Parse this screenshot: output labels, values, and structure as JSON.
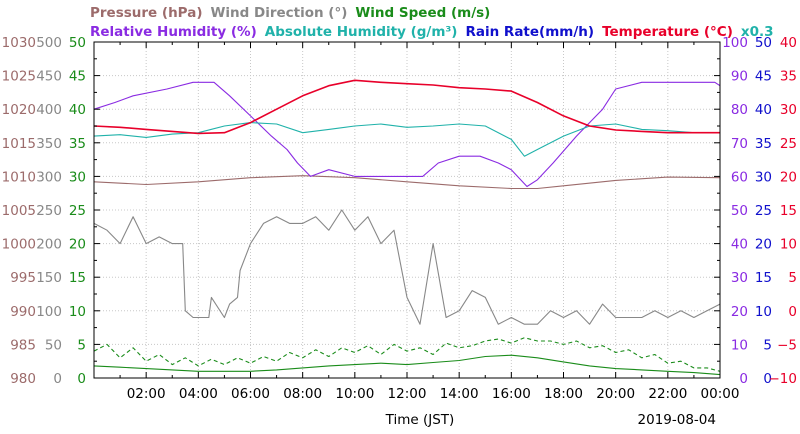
{
  "chart_data": {
    "type": "line",
    "date": "2019-08-04",
    "xlabel": "Time (JST)",
    "x_ticks": [
      "02:00",
      "04:00",
      "06:00",
      "08:00",
      "10:00",
      "12:00",
      "14:00",
      "16:00",
      "18:00",
      "20:00",
      "22:00",
      "00:00"
    ],
    "x_range": [
      "00:00",
      "24:00"
    ],
    "legend_row1": [
      {
        "text": "Pressure (hPa)",
        "color": "#9c6b6b"
      },
      {
        "text": "Wind Direction (°)",
        "color": "#888888"
      },
      {
        "text": "Wind Speed (m/s)",
        "color": "#1a8c1a"
      }
    ],
    "legend_row2": [
      {
        "text": "Relative Humidity (%)",
        "color": "#8a2be2"
      },
      {
        "text": "Absolute Humidity (g/m³)",
        "color": "#20b2aa"
      },
      {
        "text": "Rain Rate(mm/h)",
        "color": "#1010cc"
      },
      {
        "text": "Temperature (°C)",
        "color": "#e8002a"
      },
      {
        "text": "x0.3",
        "color": "#20b2aa"
      }
    ],
    "axes": {
      "pressure": {
        "color": "#9c6b6b",
        "ylim": [
          980,
          1030
        ],
        "ticks": [
          "1030",
          "1025",
          "1020",
          "1015",
          "1010",
          "1005",
          "1000",
          "995",
          "990",
          "985",
          "980"
        ]
      },
      "wind_direction": {
        "color": "#888888",
        "ylim": [
          0,
          500
        ],
        "ticks": [
          "500",
          "450",
          "400",
          "350",
          "300",
          "250",
          "200",
          "150",
          "100",
          "50",
          "0"
        ]
      },
      "wind_speed": {
        "color": "#1a8c1a",
        "ylim": [
          0,
          50
        ],
        "ticks": [
          "50",
          "45",
          "40",
          "35",
          "30",
          "25",
          "20",
          "15",
          "10",
          "5",
          "0"
        ]
      },
      "relative_humidity": {
        "color": "#8a2be2",
        "ylim": [
          0,
          100
        ],
        "ticks": [
          "100",
          "90",
          "80",
          "70",
          "60",
          "50",
          "40",
          "30",
          "20",
          "10",
          "0"
        ]
      },
      "rain_rate": {
        "color": "#1010cc",
        "ylim": [
          0,
          50
        ],
        "ticks": [
          "50",
          "45",
          "40",
          "35",
          "30",
          "25",
          "20",
          "15",
          "10",
          "5",
          "0"
        ]
      },
      "temperature": {
        "color": "#e8002a",
        "ylim": [
          -10,
          40
        ],
        "ticks": [
          "40",
          "35",
          "30",
          "25",
          "20",
          "15",
          "10",
          "5",
          "0",
          "−5",
          "−10"
        ]
      }
    },
    "series": [
      {
        "name": "Temperature",
        "axis": "temperature",
        "color": "#e8002a",
        "x": [
          0,
          1,
          2,
          3,
          4,
          5,
          6,
          7,
          8,
          9,
          10,
          11,
          12,
          13,
          14,
          15,
          16,
          17,
          18,
          19,
          20,
          21,
          22,
          23,
          24
        ],
        "y": [
          27.5,
          27.3,
          27.0,
          26.7,
          26.4,
          26.5,
          28.0,
          30.0,
          32.0,
          33.5,
          34.3,
          34.0,
          33.8,
          33.6,
          33.2,
          33.0,
          32.7,
          31.0,
          29.0,
          27.5,
          26.9,
          26.7,
          26.5,
          26.5,
          26.5
        ]
      },
      {
        "name": "Absolute Humidity ×0.3",
        "axis": "temperature",
        "color": "#20b2aa",
        "x": [
          0,
          1,
          2,
          3,
          4,
          5,
          6,
          7,
          8,
          9,
          10,
          11,
          12,
          13,
          14,
          15,
          16,
          16.5,
          17,
          18,
          19,
          20,
          21,
          22,
          23,
          24
        ],
        "y": [
          26.0,
          26.2,
          25.8,
          26.3,
          26.5,
          27.5,
          28.0,
          27.8,
          26.5,
          27.0,
          27.5,
          27.8,
          27.3,
          27.5,
          27.8,
          27.5,
          25.5,
          23.0,
          24.0,
          26.0,
          27.5,
          27.8,
          27.0,
          26.8,
          26.5,
          26.5
        ]
      },
      {
        "name": "Relative Humidity",
        "axis": "relative_humidity",
        "color": "#8a2be2",
        "x": [
          0,
          0.8,
          1.5,
          2.8,
          3.8,
          4.6,
          5.2,
          6.0,
          6.8,
          7.4,
          7.8,
          8.3,
          9.0,
          10.0,
          11.0,
          12.0,
          12.6,
          13.2,
          14.0,
          14.8,
          15.5,
          16.0,
          16.6,
          17.0,
          17.6,
          18.5,
          19.5,
          20.0,
          21.0,
          22.0,
          23.0,
          23.8,
          24.0
        ],
        "y": [
          80,
          82,
          84,
          86,
          88,
          88,
          84,
          78,
          72,
          68,
          64,
          60,
          62,
          60,
          60,
          60,
          60,
          64,
          66,
          66,
          64,
          62,
          57,
          59,
          64,
          72,
          80,
          86,
          88,
          88,
          88,
          88,
          87
        ]
      },
      {
        "name": "Pressure",
        "axis": "pressure",
        "color": "#9c6b6b",
        "x": [
          0,
          2,
          4,
          6,
          8,
          10,
          12,
          14,
          16,
          17,
          18,
          20,
          22,
          24
        ],
        "y": [
          1009.2,
          1008.8,
          1009.2,
          1009.8,
          1010.1,
          1009.8,
          1009.2,
          1008.6,
          1008.2,
          1008.2,
          1008.6,
          1009.4,
          1009.9,
          1009.8
        ]
      },
      {
        "name": "Wind Direction",
        "axis": "wind_direction",
        "color": "#888888",
        "x": [
          0,
          0.5,
          1.0,
          1.5,
          2.0,
          2.5,
          3.0,
          3.4,
          3.5,
          3.8,
          4.4,
          4.5,
          5.0,
          5.2,
          5.5,
          5.6,
          6.0,
          6.5,
          7.0,
          7.5,
          8.0,
          8.5,
          9.0,
          9.5,
          10.0,
          10.5,
          11.0,
          11.5,
          12.0,
          12.5,
          13.0,
          13.5,
          14.0,
          14.5,
          15.0,
          15.5,
          16.0,
          16.5,
          17.0,
          17.5,
          18.0,
          18.5,
          19.0,
          19.5,
          20.0,
          20.5,
          21.0,
          21.5,
          22.0,
          22.5,
          23.0,
          23.5,
          24.0
        ],
        "y": [
          230,
          220,
          200,
          240,
          200,
          210,
          200,
          200,
          100,
          90,
          90,
          120,
          90,
          110,
          120,
          160,
          200,
          230,
          240,
          230,
          230,
          240,
          220,
          250,
          220,
          240,
          200,
          220,
          120,
          80,
          200,
          90,
          100,
          130,
          120,
          80,
          90,
          80,
          80,
          100,
          90,
          100,
          80,
          110,
          90,
          90,
          90,
          100,
          90,
          100,
          90,
          100,
          110
        ]
      },
      {
        "name": "Wind Speed (avg)",
        "axis": "wind_speed",
        "color": "#1a8c1a",
        "x": [
          0,
          1,
          2,
          3,
          4,
          5,
          6,
          7,
          8,
          9,
          10,
          11,
          12,
          13,
          14,
          15,
          16,
          17,
          18,
          19,
          20,
          21,
          22,
          23,
          24
        ],
        "y": [
          1.8,
          1.6,
          1.4,
          1.2,
          1.0,
          1.0,
          1.0,
          1.2,
          1.5,
          1.8,
          2.0,
          2.2,
          2.0,
          2.3,
          2.6,
          3.2,
          3.4,
          3.0,
          2.4,
          1.8,
          1.4,
          1.2,
          1.0,
          0.8,
          0.5
        ]
      },
      {
        "name": "Wind Speed (gust)",
        "axis": "wind_speed",
        "color": "#1a8c1a",
        "dashed": true,
        "x": [
          0,
          0.5,
          1.0,
          1.5,
          2.0,
          2.5,
          3.0,
          3.5,
          4.0,
          4.5,
          5.0,
          5.5,
          6.0,
          6.5,
          7.0,
          7.5,
          8.0,
          8.5,
          9.0,
          9.5,
          10.0,
          10.5,
          11.0,
          11.5,
          12.0,
          12.5,
          13.0,
          13.5,
          14.0,
          14.5,
          15.0,
          15.5,
          16.0,
          16.5,
          17.0,
          17.5,
          18.0,
          18.5,
          19.0,
          19.5,
          20.0,
          20.5,
          21.0,
          21.5,
          22.0,
          22.5,
          23.0,
          23.5,
          24.0
        ],
        "y": [
          4.0,
          5.0,
          3.0,
          4.5,
          2.5,
          3.5,
          2.0,
          3.0,
          1.8,
          2.8,
          2.0,
          3.0,
          2.2,
          3.2,
          2.5,
          3.8,
          3.0,
          4.2,
          3.2,
          4.5,
          3.8,
          4.8,
          3.5,
          5.0,
          4.0,
          4.5,
          3.5,
          5.2,
          4.5,
          4.8,
          5.5,
          5.8,
          5.2,
          6.0,
          5.5,
          5.5,
          5.0,
          5.5,
          4.5,
          4.8,
          3.8,
          4.2,
          3.0,
          3.5,
          2.2,
          2.5,
          1.5,
          1.5,
          1.0
        ]
      },
      {
        "name": "Rain Rate",
        "axis": "rain_rate",
        "color": "#1010cc",
        "x": [
          0,
          24
        ],
        "y": [
          0,
          0
        ]
      }
    ]
  }
}
